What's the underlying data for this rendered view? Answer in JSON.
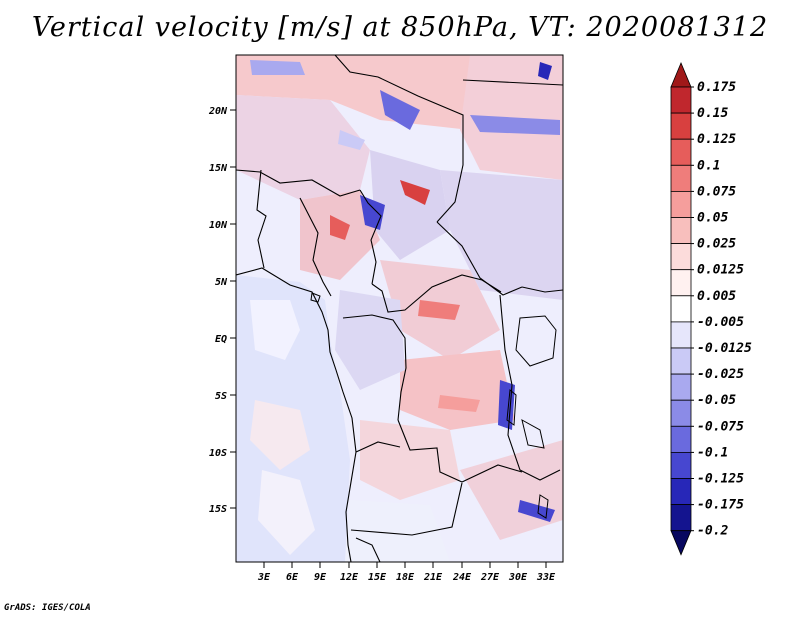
{
  "title": "Vertical velocity [m/s] at 850hPa, VT: 2020081312",
  "footer": "GrADS: IGES/COLA",
  "map": {
    "lat_ticks": [
      "20N",
      "15N",
      "10N",
      "5N",
      "EQ",
      "5S",
      "10S",
      "15S"
    ],
    "lon_ticks": [
      "3E",
      "6E",
      "9E",
      "12E",
      "15E",
      "18E",
      "21E",
      "24E",
      "27E",
      "30E",
      "33E"
    ],
    "lat_range": [
      -19.5,
      24.5
    ],
    "lon_range": [
      0,
      34.5
    ]
  },
  "colorbar": {
    "labels": [
      "0.175",
      "0.15",
      "0.125",
      "0.1",
      "0.075",
      "0.05",
      "0.025",
      "0.0125",
      "0.005",
      "-0.005",
      "-0.0125",
      "-0.025",
      "-0.05",
      "-0.075",
      "-0.1",
      "-0.125",
      "-0.175",
      "-0.2"
    ],
    "colors": [
      "#a01919",
      "#c0272d",
      "#d8403f",
      "#e65d5b",
      "#ef7d7b",
      "#f59e9c",
      "#f8bfbd",
      "#fcdcdb",
      "#fff1f0",
      "#ffffff",
      "#e6e6fb",
      "#cacaf6",
      "#a9a9ef",
      "#8b8be7",
      "#6a6ade",
      "#4747d0",
      "#2727b8",
      "#14148f",
      "#080860"
    ]
  }
}
